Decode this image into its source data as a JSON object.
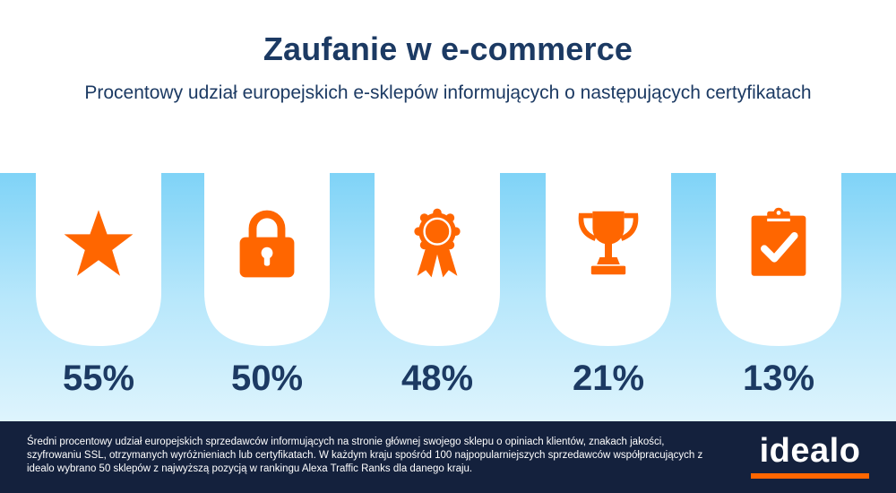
{
  "header": {
    "title": "Zaufanie w e-commerce",
    "subtitle": "Procentowy udział europejskich e-sklepów informujących o następujących certyfikatach"
  },
  "colors": {
    "accent": "#ff6600",
    "navy": "#1c3a63",
    "footer": "#14213d",
    "band_top": "#7fd3f7"
  },
  "cards": [
    {
      "icon": "star-icon",
      "value": "55%"
    },
    {
      "icon": "padlock-icon",
      "value": "50%"
    },
    {
      "icon": "award-rosette-icon",
      "value": "48%"
    },
    {
      "icon": "trophy-icon",
      "value": "21%"
    },
    {
      "icon": "clipboard-check-icon",
      "value": "13%"
    }
  ],
  "footer": {
    "note": "Średni procentowy udział europejskich sprzedawców informujących na stronie głównej swojego sklepu o opiniach klientów, znakach jakości, szyfrowaniu SSL, otrzymanych wyróżnieniach lub certyfikatach. W każdym kraju spośród 100 najpopularniejszych sprzedawców współpracujących z idealo wybrano 50 sklepów z najwyższą pozycją w rankingu Alexa Traffic Ranks dla danego kraju.",
    "logo": "idealo"
  }
}
